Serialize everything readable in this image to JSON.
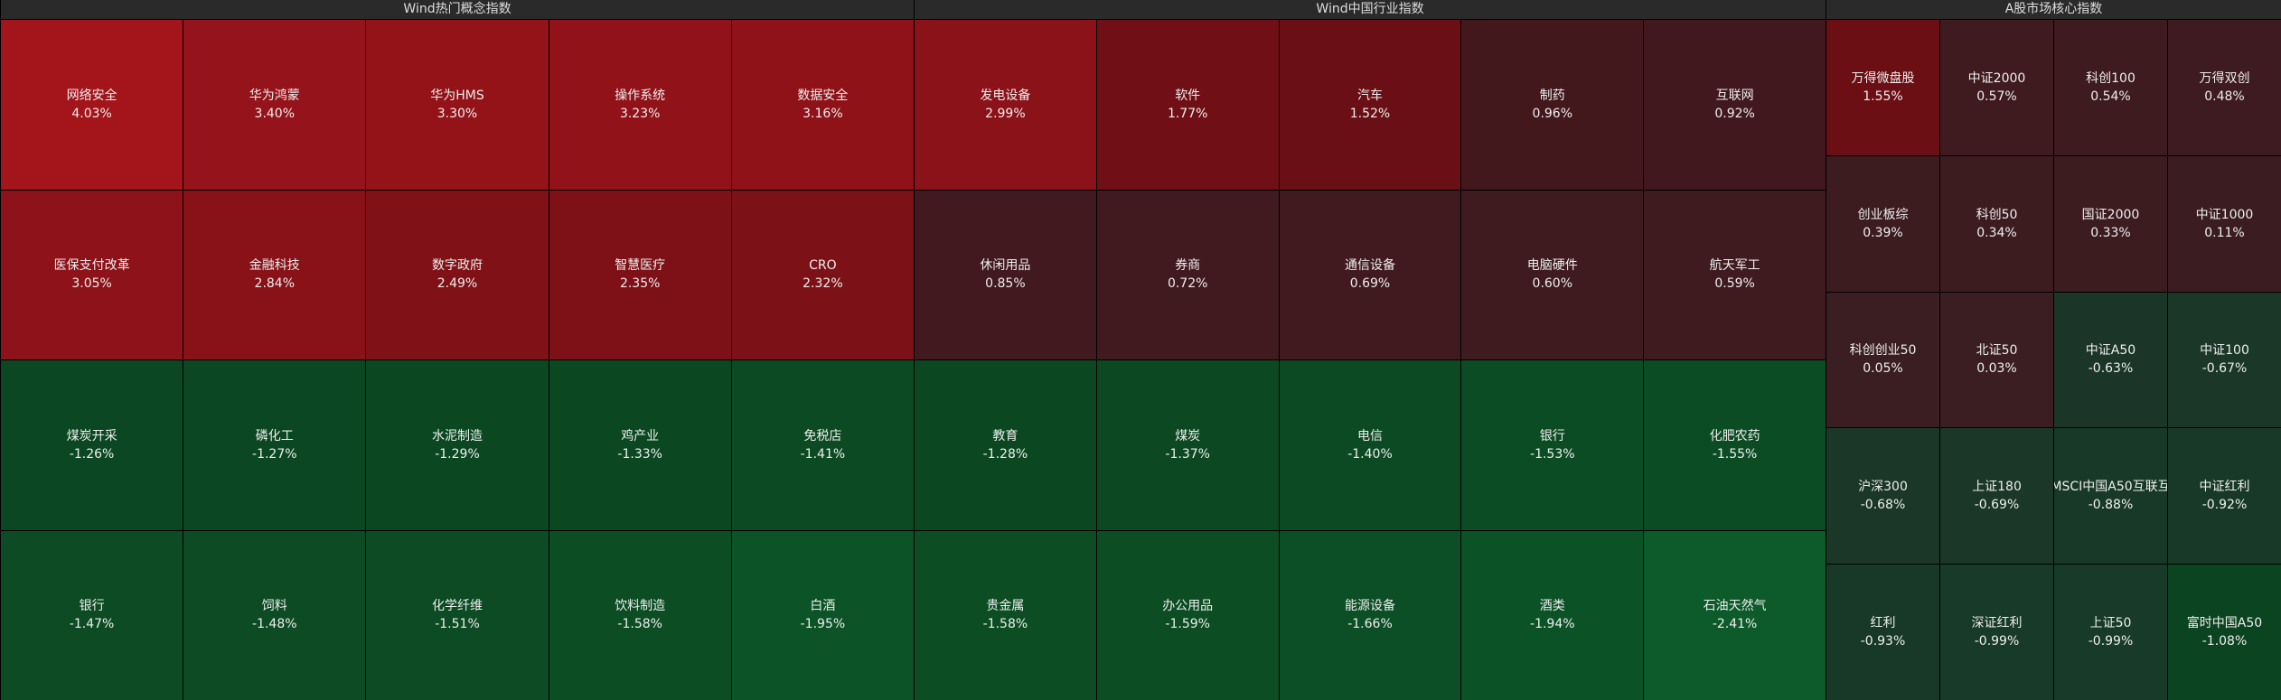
{
  "panels": [
    {
      "title": "Wind热门概念指数",
      "cells": [
        {
          "name": "网络安全",
          "change": "4.03%"
        },
        {
          "name": "华为鸿蒙",
          "change": "3.40%"
        },
        {
          "name": "华为HMS",
          "change": "3.30%"
        },
        {
          "name": "操作系统",
          "change": "3.23%"
        },
        {
          "name": "数据安全",
          "change": "3.16%"
        },
        {
          "name": "医保支付改革",
          "change": "3.05%"
        },
        {
          "name": "金融科技",
          "change": "2.84%"
        },
        {
          "name": "数字政府",
          "change": "2.49%"
        },
        {
          "name": "智慧医疗",
          "change": "2.35%"
        },
        {
          "name": "CRO",
          "change": "2.32%"
        },
        {
          "name": "煤炭开采",
          "change": "-1.26%"
        },
        {
          "name": "磷化工",
          "change": "-1.27%"
        },
        {
          "name": "水泥制造",
          "change": "-1.29%"
        },
        {
          "name": "鸡产业",
          "change": "-1.33%"
        },
        {
          "name": "免税店",
          "change": "-1.41%"
        },
        {
          "name": "银行",
          "change": "-1.47%"
        },
        {
          "name": "饲料",
          "change": "-1.48%"
        },
        {
          "name": "化学纤维",
          "change": "-1.51%"
        },
        {
          "name": "饮料制造",
          "change": "-1.58%"
        },
        {
          "name": "白酒",
          "change": "-1.95%"
        }
      ]
    },
    {
      "title": "Wind中国行业指数",
      "cells": [
        {
          "name": "发电设备",
          "change": "2.99%"
        },
        {
          "name": "软件",
          "change": "1.77%"
        },
        {
          "name": "汽车",
          "change": "1.52%"
        },
        {
          "name": "制药",
          "change": "0.96%"
        },
        {
          "name": "互联网",
          "change": "0.92%"
        },
        {
          "name": "休闲用品",
          "change": "0.85%"
        },
        {
          "name": "券商",
          "change": "0.72%"
        },
        {
          "name": "通信设备",
          "change": "0.69%"
        },
        {
          "name": "电脑硬件",
          "change": "0.60%"
        },
        {
          "name": "航天军工",
          "change": "0.59%"
        },
        {
          "name": "教育",
          "change": "-1.28%"
        },
        {
          "name": "煤炭",
          "change": "-1.37%"
        },
        {
          "name": "电信",
          "change": "-1.40%"
        },
        {
          "name": "银行",
          "change": "-1.53%"
        },
        {
          "name": "化肥农药",
          "change": "-1.55%"
        },
        {
          "name": "贵金属",
          "change": "-1.58%"
        },
        {
          "name": "办公用品",
          "change": "-1.59%"
        },
        {
          "name": "能源设备",
          "change": "-1.66%"
        },
        {
          "name": "酒类",
          "change": "-1.94%"
        },
        {
          "name": "石油天然气",
          "change": "-2.41%"
        }
      ]
    },
    {
      "title": "A股市场核心指数",
      "cells": [
        {
          "name": "万得微盘股",
          "change": "1.55%"
        },
        {
          "name": "中证2000",
          "change": "0.57%"
        },
        {
          "name": "科创100",
          "change": "0.54%"
        },
        {
          "name": "万得双创",
          "change": "0.48%"
        },
        {
          "name": "创业板综",
          "change": "0.39%"
        },
        {
          "name": "科创50",
          "change": "0.34%"
        },
        {
          "name": "国证2000",
          "change": "0.33%"
        },
        {
          "name": "中证1000",
          "change": "0.11%"
        },
        {
          "name": "科创创业50",
          "change": "0.05%"
        },
        {
          "name": "北证50",
          "change": "0.03%"
        },
        {
          "name": "中证A50",
          "change": "-0.63%"
        },
        {
          "name": "中证100",
          "change": "-0.67%"
        },
        {
          "name": "沪深300",
          "change": "-0.68%"
        },
        {
          "name": "上证180",
          "change": "-0.69%"
        },
        {
          "name": "MSCI中国A50互联互",
          "change": "-0.88%"
        },
        {
          "name": "中证红利",
          "change": "-0.92%"
        },
        {
          "name": "红利",
          "change": "-0.93%"
        },
        {
          "name": "深证红利",
          "change": "-0.99%"
        },
        {
          "name": "上证50",
          "change": "-0.99%"
        },
        {
          "name": "富时中国A50",
          "change": "-1.08%"
        }
      ]
    }
  ]
}
